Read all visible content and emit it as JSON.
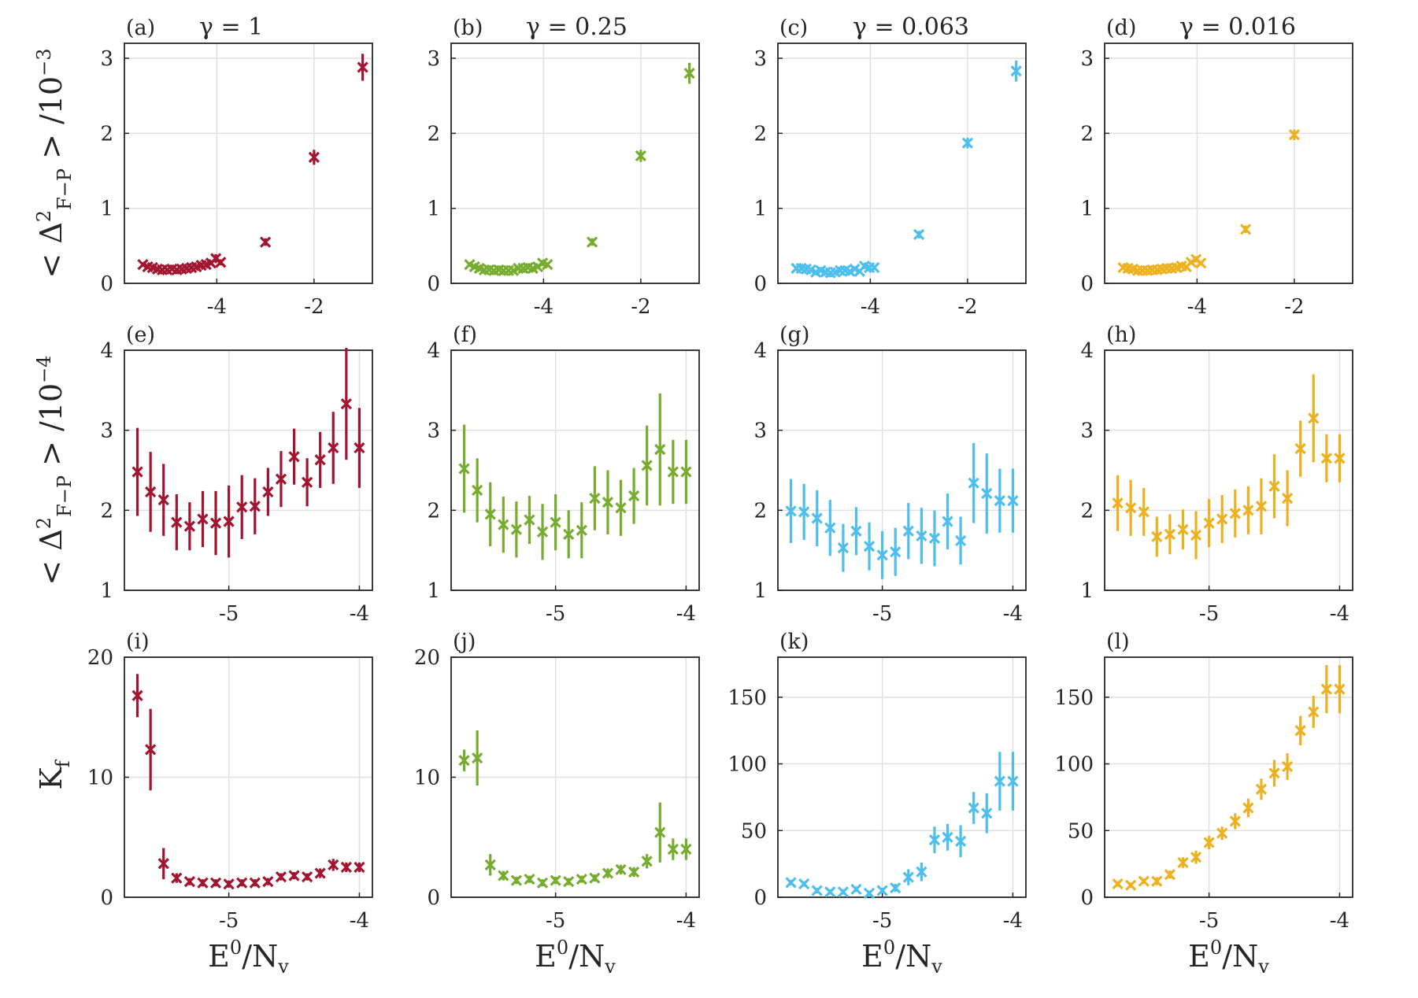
{
  "figure": {
    "row_ylabels": [
      {
        "lead": "< Δ",
        "sup": "2",
        "sub": "F−P",
        "tail": " > /10",
        "exp": "−3"
      },
      {
        "lead": "< Δ",
        "sup": "2",
        "sub": "F−P",
        "tail": " > /10",
        "exp": "−4"
      },
      {
        "lead": "K",
        "sub": "f"
      }
    ],
    "xlabel": {
      "lead": "E",
      "sup": "0",
      "mid": "/N",
      "sub": "v"
    },
    "colors": {
      "a": "#a2142f",
      "b": "#77ac30",
      "c": "#4dbeee",
      "d": "#edb120"
    }
  },
  "chart_data": [
    {
      "id": "a",
      "label": "(a)",
      "title": "γ = 1",
      "type": "scatter",
      "color": "#a2142f",
      "xlim": [
        -5.9,
        -0.8
      ],
      "ylim": [
        0,
        3.2
      ],
      "xticks": [
        -4,
        -2
      ],
      "yticks": [
        0,
        1,
        2,
        3
      ],
      "x": [
        -5.52,
        -5.42,
        -5.32,
        -5.22,
        -5.12,
        -5.02,
        -4.92,
        -4.82,
        -4.72,
        -4.62,
        -4.52,
        -4.42,
        -4.32,
        -4.22,
        -4.12,
        -4.02,
        -3.92,
        -3.0,
        -2.0,
        -1.0
      ],
      "y": [
        0.25,
        0.22,
        0.21,
        0.19,
        0.18,
        0.18,
        0.19,
        0.18,
        0.19,
        0.2,
        0.21,
        0.22,
        0.24,
        0.25,
        0.27,
        0.33,
        0.28,
        0.55,
        1.68,
        2.88
      ],
      "err": [
        0.03,
        0.03,
        0.03,
        0.02,
        0.02,
        0.02,
        0.02,
        0.02,
        0.02,
        0.02,
        0.02,
        0.02,
        0.03,
        0.03,
        0.03,
        0.06,
        0.04,
        0.05,
        0.1,
        0.18
      ]
    },
    {
      "id": "b",
      "label": "(b)",
      "title": "γ = 0.25",
      "type": "scatter",
      "color": "#77ac30",
      "xlim": [
        -5.9,
        -0.8
      ],
      "ylim": [
        0,
        3.2
      ],
      "xticks": [
        -4,
        -2
      ],
      "yticks": [
        0,
        1,
        2,
        3
      ],
      "x": [
        -5.52,
        -5.42,
        -5.32,
        -5.22,
        -5.12,
        -5.02,
        -4.92,
        -4.82,
        -4.72,
        -4.62,
        -4.52,
        -4.42,
        -4.32,
        -4.22,
        -4.12,
        -4.02,
        -3.92,
        -3.0,
        -2.0,
        -1.0
      ],
      "y": [
        0.25,
        0.22,
        0.2,
        0.18,
        0.18,
        0.17,
        0.18,
        0.17,
        0.17,
        0.17,
        0.2,
        0.2,
        0.21,
        0.2,
        0.22,
        0.27,
        0.25,
        0.55,
        1.7,
        2.8
      ],
      "err": [
        0.03,
        0.03,
        0.02,
        0.02,
        0.02,
        0.02,
        0.02,
        0.02,
        0.02,
        0.02,
        0.02,
        0.02,
        0.02,
        0.02,
        0.02,
        0.04,
        0.03,
        0.05,
        0.08,
        0.14
      ]
    },
    {
      "id": "c",
      "label": "(c)",
      "title": "γ = 0.063",
      "type": "scatter",
      "color": "#4dbeee",
      "xlim": [
        -5.9,
        -0.8
      ],
      "ylim": [
        0,
        3.2
      ],
      "xticks": [
        -4,
        -2
      ],
      "yticks": [
        0,
        1,
        2,
        3
      ],
      "x": [
        -5.52,
        -5.42,
        -5.32,
        -5.22,
        -5.12,
        -5.02,
        -4.92,
        -4.82,
        -4.72,
        -4.62,
        -4.52,
        -4.42,
        -4.32,
        -4.22,
        -4.12,
        -4.02,
        -3.92,
        -3.0,
        -2.0,
        -1.0
      ],
      "y": [
        0.2,
        0.2,
        0.19,
        0.18,
        0.15,
        0.17,
        0.15,
        0.14,
        0.15,
        0.17,
        0.17,
        0.16,
        0.19,
        0.16,
        0.23,
        0.21,
        0.21,
        0.65,
        1.87,
        2.83
      ],
      "err": [
        0.03,
        0.03,
        0.03,
        0.02,
        0.02,
        0.02,
        0.02,
        0.02,
        0.02,
        0.02,
        0.02,
        0.02,
        0.02,
        0.02,
        0.04,
        0.03,
        0.03,
        0.05,
        0.07,
        0.14
      ]
    },
    {
      "id": "d",
      "label": "(d)",
      "title": "γ = 0.016",
      "type": "scatter",
      "color": "#edb120",
      "xlim": [
        -5.9,
        -0.8
      ],
      "ylim": [
        0,
        3.2
      ],
      "xticks": [
        -4,
        -2
      ],
      "yticks": [
        0,
        1,
        2,
        3
      ],
      "x": [
        -5.52,
        -5.42,
        -5.32,
        -5.22,
        -5.12,
        -5.02,
        -4.92,
        -4.82,
        -4.72,
        -4.62,
        -4.52,
        -4.42,
        -4.32,
        -4.22,
        -4.12,
        -4.02,
        -3.92,
        -3.0,
        -2.0
      ],
      "y": [
        0.21,
        0.2,
        0.19,
        0.17,
        0.17,
        0.17,
        0.18,
        0.18,
        0.19,
        0.2,
        0.2,
        0.21,
        0.23,
        0.22,
        0.28,
        0.32,
        0.27,
        0.72,
        1.98
      ],
      "err": [
        0.03,
        0.03,
        0.03,
        0.02,
        0.02,
        0.02,
        0.02,
        0.02,
        0.02,
        0.02,
        0.02,
        0.02,
        0.02,
        0.02,
        0.03,
        0.04,
        0.03,
        0.05,
        0.07
      ]
    },
    {
      "id": "e",
      "label": "(e)",
      "type": "scatter",
      "color": "#a2142f",
      "xlim": [
        -5.8,
        -3.9
      ],
      "ylim": [
        1,
        4
      ],
      "xticks": [
        -5,
        -4
      ],
      "yticks": [
        1,
        2,
        3,
        4
      ],
      "x": [
        -5.7,
        -5.6,
        -5.5,
        -5.4,
        -5.3,
        -5.2,
        -5.1,
        -5.0,
        -4.9,
        -4.8,
        -4.7,
        -4.6,
        -4.5,
        -4.4,
        -4.3,
        -4.2,
        -4.1,
        -4.0
      ],
      "y": [
        2.48,
        2.23,
        2.13,
        1.85,
        1.8,
        1.89,
        1.84,
        1.86,
        2.04,
        2.05,
        2.23,
        2.39,
        2.67,
        2.35,
        2.63,
        2.78,
        3.33,
        2.78
      ],
      "err": [
        0.55,
        0.5,
        0.45,
        0.35,
        0.3,
        0.35,
        0.4,
        0.45,
        0.4,
        0.35,
        0.3,
        0.35,
        0.35,
        0.3,
        0.35,
        0.45,
        0.7,
        0.5
      ]
    },
    {
      "id": "f",
      "label": "(f)",
      "type": "scatter",
      "color": "#77ac30",
      "xlim": [
        -5.8,
        -3.9
      ],
      "ylim": [
        1,
        4
      ],
      "xticks": [
        -5,
        -4
      ],
      "yticks": [
        1,
        2,
        3,
        4
      ],
      "x": [
        -5.7,
        -5.6,
        -5.5,
        -5.4,
        -5.3,
        -5.2,
        -5.1,
        -5.0,
        -4.9,
        -4.8,
        -4.7,
        -4.6,
        -4.5,
        -4.4,
        -4.3,
        -4.2,
        -4.1,
        -4.0
      ],
      "y": [
        2.52,
        2.25,
        1.95,
        1.82,
        1.76,
        1.88,
        1.73,
        1.85,
        1.7,
        1.75,
        2.15,
        2.1,
        2.03,
        2.18,
        2.56,
        2.76,
        2.48,
        2.48
      ],
      "err": [
        0.55,
        0.4,
        0.4,
        0.35,
        0.35,
        0.3,
        0.35,
        0.35,
        0.3,
        0.35,
        0.4,
        0.4,
        0.35,
        0.35,
        0.5,
        0.7,
        0.4,
        0.4
      ]
    },
    {
      "id": "g",
      "label": "(g)",
      "type": "scatter",
      "color": "#4dbeee",
      "xlim": [
        -5.8,
        -3.9
      ],
      "ylim": [
        1,
        4
      ],
      "xticks": [
        -5,
        -4
      ],
      "yticks": [
        1,
        2,
        3,
        4
      ],
      "x": [
        -5.7,
        -5.6,
        -5.5,
        -5.4,
        -5.3,
        -5.2,
        -5.1,
        -5.0,
        -4.9,
        -4.8,
        -4.7,
        -4.6,
        -4.5,
        -4.4,
        -4.3,
        -4.2,
        -4.1,
        -4.0
      ],
      "y": [
        1.99,
        1.98,
        1.9,
        1.78,
        1.53,
        1.74,
        1.55,
        1.44,
        1.48,
        1.74,
        1.68,
        1.65,
        1.86,
        1.62,
        2.34,
        2.21,
        2.12,
        2.12
      ],
      "err": [
        0.4,
        0.35,
        0.35,
        0.35,
        0.3,
        0.3,
        0.3,
        0.3,
        0.3,
        0.35,
        0.35,
        0.35,
        0.35,
        0.3,
        0.5,
        0.5,
        0.4,
        0.4
      ]
    },
    {
      "id": "h",
      "label": "(h)",
      "type": "scatter",
      "color": "#edb120",
      "xlim": [
        -5.8,
        -3.9
      ],
      "ylim": [
        1,
        4
      ],
      "xticks": [
        -5,
        -4
      ],
      "yticks": [
        1,
        2,
        3,
        4
      ],
      "x": [
        -5.7,
        -5.6,
        -5.5,
        -5.4,
        -5.3,
        -5.2,
        -5.1,
        -5.0,
        -4.9,
        -4.8,
        -4.7,
        -4.6,
        -4.5,
        -4.4,
        -4.3,
        -4.2,
        -4.1,
        -4.0
      ],
      "y": [
        2.09,
        2.03,
        1.98,
        1.67,
        1.7,
        1.76,
        1.69,
        1.84,
        1.89,
        1.96,
        2.0,
        2.05,
        2.3,
        2.15,
        2.77,
        3.15,
        2.65,
        2.65
      ],
      "err": [
        0.35,
        0.35,
        0.3,
        0.25,
        0.25,
        0.25,
        0.3,
        0.3,
        0.3,
        0.3,
        0.3,
        0.35,
        0.4,
        0.35,
        0.35,
        0.55,
        0.3,
        0.3
      ]
    },
    {
      "id": "i",
      "label": "(i)",
      "type": "scatter",
      "color": "#a2142f",
      "xlim": [
        -5.8,
        -3.9
      ],
      "ylim": [
        0,
        20
      ],
      "xticks": [
        -5,
        -4
      ],
      "yticks": [
        0,
        10,
        20
      ],
      "x": [
        -5.7,
        -5.6,
        -5.5,
        -5.4,
        -5.3,
        -5.2,
        -5.1,
        -5.0,
        -4.9,
        -4.8,
        -4.7,
        -4.6,
        -4.5,
        -4.4,
        -4.3,
        -4.2,
        -4.1,
        -4.0
      ],
      "y": [
        16.8,
        12.3,
        2.8,
        1.6,
        1.3,
        1.2,
        1.2,
        1.1,
        1.2,
        1.2,
        1.3,
        1.7,
        1.8,
        1.7,
        2.0,
        2.7,
        2.5,
        2.5
      ],
      "err": [
        1.8,
        3.4,
        1.3,
        0.4,
        0.3,
        0.3,
        0.3,
        0.3,
        0.3,
        0.3,
        0.3,
        0.3,
        0.3,
        0.3,
        0.4,
        0.5,
        0.4,
        0.4
      ]
    },
    {
      "id": "j",
      "label": "(j)",
      "type": "scatter",
      "color": "#77ac30",
      "xlim": [
        -5.8,
        -3.9
      ],
      "ylim": [
        0,
        20
      ],
      "xticks": [
        -5,
        -4
      ],
      "yticks": [
        0,
        10,
        20
      ],
      "x": [
        -5.7,
        -5.6,
        -5.5,
        -5.4,
        -5.3,
        -5.2,
        -5.1,
        -5.0,
        -4.9,
        -4.8,
        -4.7,
        -4.6,
        -4.5,
        -4.4,
        -4.3,
        -4.2,
        -4.1,
        -4.0
      ],
      "y": [
        11.4,
        11.6,
        2.7,
        1.8,
        1.4,
        1.5,
        1.2,
        1.4,
        1.3,
        1.5,
        1.6,
        2.0,
        2.3,
        2.1,
        3.0,
        5.4,
        4.0,
        4.0
      ],
      "err": [
        0.9,
        2.3,
        0.9,
        0.4,
        0.3,
        0.3,
        0.3,
        0.3,
        0.3,
        0.3,
        0.3,
        0.4,
        0.4,
        0.4,
        0.6,
        2.5,
        0.9,
        0.9
      ]
    },
    {
      "id": "k",
      "label": "(k)",
      "type": "scatter",
      "color": "#4dbeee",
      "xlim": [
        -5.8,
        -3.9
      ],
      "ylim": [
        0,
        180
      ],
      "xticks": [
        -5,
        -4
      ],
      "yticks": [
        0,
        50,
        100,
        150
      ],
      "x": [
        -5.7,
        -5.6,
        -5.5,
        -5.4,
        -5.3,
        -5.2,
        -5.1,
        -5.0,
        -4.9,
        -4.8,
        -4.7,
        -4.6,
        -4.5,
        -4.4,
        -4.3,
        -4.2,
        -4.1,
        -4.0
      ],
      "y": [
        11,
        10,
        5,
        4,
        4,
        6,
        3,
        5,
        7,
        15,
        19,
        43,
        45,
        42,
        67,
        63,
        87,
        87
      ],
      "err": [
        2,
        2,
        2,
        2,
        2,
        2,
        2,
        2,
        3,
        6,
        7,
        10,
        10,
        12,
        12,
        15,
        22,
        22
      ]
    },
    {
      "id": "l",
      "label": "(l)",
      "type": "scatter",
      "color": "#edb120",
      "xlim": [
        -5.8,
        -3.9
      ],
      "ylim": [
        0,
        180
      ],
      "xticks": [
        -5,
        -4
      ],
      "yticks": [
        0,
        50,
        100,
        150
      ],
      "x": [
        -5.7,
        -5.6,
        -5.5,
        -5.4,
        -5.3,
        -5.2,
        -5.1,
        -5.0,
        -4.9,
        -4.8,
        -4.7,
        -4.6,
        -4.5,
        -4.4,
        -4.3,
        -4.2,
        -4.1,
        -4.0
      ],
      "y": [
        10,
        9,
        12,
        12,
        17,
        26,
        30,
        41,
        48,
        57,
        67,
        81,
        93,
        98,
        125,
        139,
        156,
        156
      ],
      "err": [
        2,
        2,
        2,
        3,
        3,
        4,
        5,
        5,
        5,
        6,
        7,
        8,
        10,
        10,
        11,
        12,
        18,
        18
      ]
    }
  ]
}
